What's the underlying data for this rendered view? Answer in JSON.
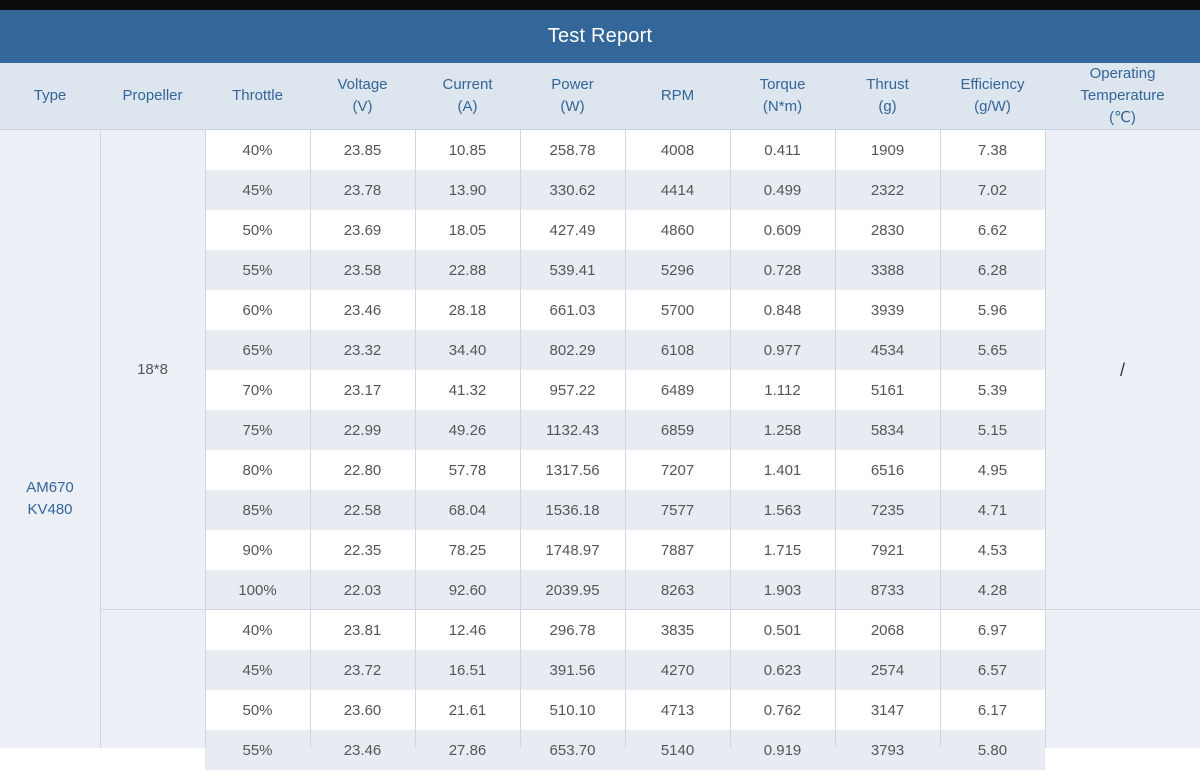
{
  "title": "Test Report",
  "headers": {
    "type": "Type",
    "propeller": "Propeller",
    "throttle": "Throttle",
    "voltage": [
      "Voltage",
      "(V)"
    ],
    "current": [
      "Current",
      "(A)"
    ],
    "power": [
      "Power",
      "(W)"
    ],
    "rpm": "RPM",
    "torque": [
      "Torque",
      "(N*m)"
    ],
    "thrust": [
      "Thrust",
      "(g)"
    ],
    "efficiency": [
      "Efficiency",
      "(g/W)"
    ],
    "temperature": [
      "Operating",
      "Temperature",
      "(℃)"
    ]
  },
  "motor_type": [
    "AM670",
    "KV480"
  ],
  "groups": [
    {
      "propeller": "18*8",
      "temperature": "/",
      "rows": [
        [
          "40%",
          "23.85",
          "10.85",
          "258.78",
          "4008",
          "0.411",
          "1909",
          "7.38"
        ],
        [
          "45%",
          "23.78",
          "13.90",
          "330.62",
          "4414",
          "0.499",
          "2322",
          "7.02"
        ],
        [
          "50%",
          "23.69",
          "18.05",
          "427.49",
          "4860",
          "0.609",
          "2830",
          "6.62"
        ],
        [
          "55%",
          "23.58",
          "22.88",
          "539.41",
          "5296",
          "0.728",
          "3388",
          "6.28"
        ],
        [
          "60%",
          "23.46",
          "28.18",
          "661.03",
          "5700",
          "0.848",
          "3939",
          "5.96"
        ],
        [
          "65%",
          "23.32",
          "34.40",
          "802.29",
          "6108",
          "0.977",
          "4534",
          "5.65"
        ],
        [
          "70%",
          "23.17",
          "41.32",
          "957.22",
          "6489",
          "1.112",
          "5161",
          "5.39"
        ],
        [
          "75%",
          "22.99",
          "49.26",
          "1132.43",
          "6859",
          "1.258",
          "5834",
          "5.15"
        ],
        [
          "80%",
          "22.80",
          "57.78",
          "1317.56",
          "7207",
          "1.401",
          "6516",
          "4.95"
        ],
        [
          "85%",
          "22.58",
          "68.04",
          "1536.18",
          "7577",
          "1.563",
          "7235",
          "4.71"
        ],
        [
          "90%",
          "22.35",
          "78.25",
          "1748.97",
          "7887",
          "1.715",
          "7921",
          "4.53"
        ],
        [
          "100%",
          "22.03",
          "92.60",
          "2039.95",
          "8263",
          "1.903",
          "8733",
          "4.28"
        ]
      ]
    },
    {
      "propeller": "",
      "temperature": "",
      "rows": [
        [
          "40%",
          "23.81",
          "12.46",
          "296.78",
          "3835",
          "0.501",
          "2068",
          "6.97"
        ],
        [
          "45%",
          "23.72",
          "16.51",
          "391.56",
          "4270",
          "0.623",
          "2574",
          "6.57"
        ],
        [
          "50%",
          "23.60",
          "21.61",
          "510.10",
          "4713",
          "0.762",
          "3147",
          "6.17"
        ],
        [
          "55%",
          "23.46",
          "27.86",
          "653.70",
          "5140",
          "0.919",
          "3793",
          "5.80"
        ]
      ]
    }
  ]
}
